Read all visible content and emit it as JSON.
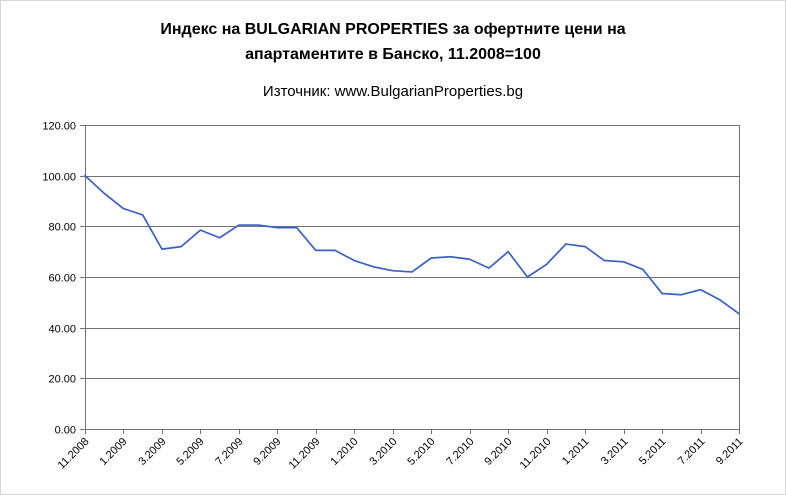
{
  "title_line1": "Индекс на BULGARIAN PROPERTIES за офертните цени на",
  "title_line2": "апартаментите в Банско, 11.2008=100",
  "subtitle": "Източник: www.BulgarianProperties.bg",
  "chart_data": {
    "type": "line",
    "title": "Индекс на BULGARIAN PROPERTIES за офертните цени на апартаментите в Банско, 11.2008=100",
    "subtitle": "Източник: www.BulgarianProperties.bg",
    "x": [
      "11.2008",
      "12.2008",
      "1.2009",
      "2.2009",
      "3.2009",
      "4.2009",
      "5.2009",
      "6.2009",
      "7.2009",
      "8.2009",
      "9.2009",
      "10.2009",
      "11.2009",
      "12.2009",
      "1.2010",
      "2.2010",
      "3.2010",
      "4.2010",
      "5.2010",
      "6.2010",
      "7.2010",
      "8.2010",
      "9.2010",
      "10.2010",
      "11.2010",
      "12.2010",
      "1.2011",
      "2.2011",
      "3.2011",
      "4.2011",
      "5.2011",
      "6.2011",
      "7.2011",
      "8.2011",
      "9.2011"
    ],
    "values": [
      100,
      93,
      87,
      84.5,
      71,
      72,
      78.5,
      75.5,
      80.5,
      80.5,
      79.5,
      79.5,
      70.5,
      70.5,
      66.5,
      64,
      62.5,
      62,
      67.5,
      68,
      67,
      63.5,
      70,
      60,
      65,
      73,
      72,
      66.5,
      66,
      63,
      53.5,
      53,
      55,
      51,
      45.5
    ],
    "x_tick_every": 2,
    "y_ticks": [
      0,
      20,
      40,
      60,
      80,
      100,
      120
    ],
    "y_tick_labels": [
      "0.00",
      "20.00",
      "40.00",
      "60.00",
      "80.00",
      "100.00",
      "120.00"
    ],
    "ylim": [
      0,
      120
    ],
    "grid": "horizontal",
    "legend": "none",
    "colors": {
      "line": "#3A5FC8",
      "grid": "#737373",
      "text": "#000000"
    }
  }
}
